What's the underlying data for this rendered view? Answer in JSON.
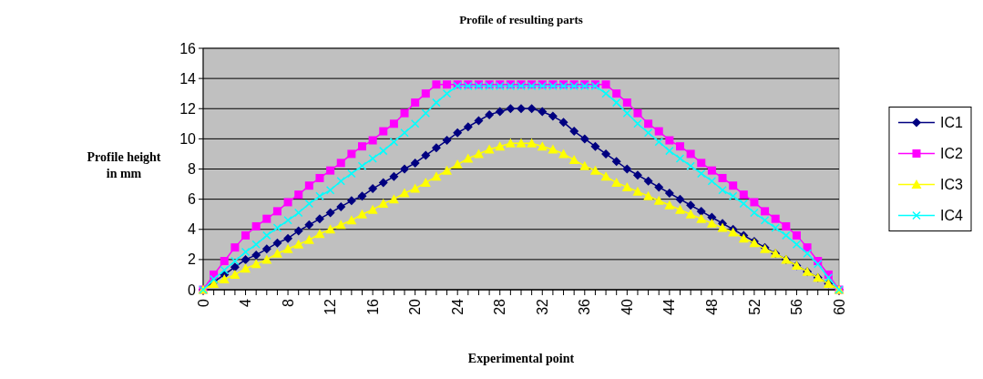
{
  "chart_data": {
    "type": "line",
    "title": "Profile of resulting parts",
    "xlabel": "Experimental point",
    "ylabel": "Profile height in mm",
    "x": [
      0,
      1,
      2,
      3,
      4,
      5,
      6,
      7,
      8,
      9,
      10,
      11,
      12,
      13,
      14,
      15,
      16,
      17,
      18,
      19,
      20,
      21,
      22,
      23,
      24,
      25,
      26,
      27,
      28,
      29,
      30,
      31,
      32,
      33,
      34,
      35,
      36,
      37,
      38,
      39,
      40,
      41,
      42,
      43,
      44,
      45,
      46,
      47,
      48,
      49,
      50,
      51,
      52,
      53,
      54,
      55,
      56,
      57,
      58,
      59,
      60
    ],
    "xlim": [
      0,
      60
    ],
    "xticks": [
      0,
      4,
      8,
      12,
      16,
      20,
      24,
      28,
      32,
      36,
      40,
      44,
      48,
      52,
      56,
      60
    ],
    "ylim": [
      0,
      16
    ],
    "yticks": [
      0,
      2,
      4,
      6,
      8,
      10,
      12,
      14,
      16
    ],
    "grid": "y",
    "legend": "right",
    "series": [
      {
        "name": "IC1",
        "color": "#000080",
        "marker": "diamond",
        "values": [
          0,
          0.5,
          1.0,
          1.5,
          2.0,
          2.3,
          2.7,
          3.1,
          3.4,
          3.9,
          4.3,
          4.7,
          5.1,
          5.5,
          5.9,
          6.2,
          6.7,
          7.1,
          7.5,
          8.0,
          8.4,
          8.9,
          9.4,
          9.9,
          10.4,
          10.8,
          11.2,
          11.6,
          11.8,
          12.0,
          12.0,
          12.0,
          11.8,
          11.5,
          11.1,
          10.5,
          10.0,
          9.5,
          9.0,
          8.5,
          8.0,
          7.6,
          7.2,
          6.8,
          6.4,
          6.0,
          5.6,
          5.2,
          4.8,
          4.4,
          4.0,
          3.6,
          3.2,
          2.8,
          2.4,
          2.0,
          1.6,
          1.2,
          0.8,
          0.4,
          0
        ]
      },
      {
        "name": "IC2",
        "color": "#ff00ff",
        "marker": "square",
        "values": [
          0,
          1.0,
          1.9,
          2.8,
          3.6,
          4.2,
          4.7,
          5.2,
          5.8,
          6.3,
          6.9,
          7.4,
          7.9,
          8.4,
          9.0,
          9.5,
          9.9,
          10.5,
          11.0,
          11.7,
          12.4,
          13.0,
          13.6,
          13.6,
          13.6,
          13.6,
          13.6,
          13.6,
          13.6,
          13.6,
          13.6,
          13.6,
          13.6,
          13.6,
          13.6,
          13.6,
          13.6,
          13.6,
          13.6,
          13.0,
          12.4,
          11.7,
          11.0,
          10.5,
          9.9,
          9.5,
          9.0,
          8.4,
          7.9,
          7.4,
          6.9,
          6.3,
          5.8,
          5.2,
          4.7,
          4.2,
          3.6,
          2.8,
          1.9,
          1.0,
          0
        ]
      },
      {
        "name": "IC3",
        "color": "#ffff00",
        "marker": "triangle",
        "values": [
          0,
          0.4,
          0.7,
          1.0,
          1.4,
          1.7,
          2.0,
          2.4,
          2.7,
          3.0,
          3.3,
          3.7,
          4.0,
          4.3,
          4.6,
          5.0,
          5.3,
          5.7,
          6.0,
          6.4,
          6.7,
          7.1,
          7.5,
          7.9,
          8.3,
          8.7,
          9.0,
          9.3,
          9.5,
          9.7,
          9.7,
          9.7,
          9.5,
          9.3,
          9.0,
          8.6,
          8.2,
          7.9,
          7.5,
          7.1,
          6.8,
          6.5,
          6.2,
          5.9,
          5.6,
          5.3,
          5.0,
          4.7,
          4.4,
          4.1,
          3.8,
          3.4,
          3.1,
          2.7,
          2.4,
          2.0,
          1.6,
          1.2,
          0.8,
          0.4,
          0
        ]
      },
      {
        "name": "IC4",
        "color": "#00ffff",
        "marker": "cross",
        "values": [
          0,
          0.7,
          1.3,
          1.9,
          2.5,
          3.0,
          3.6,
          4.1,
          4.6,
          5.1,
          5.7,
          6.2,
          6.6,
          7.2,
          7.7,
          8.2,
          8.7,
          9.2,
          9.8,
          10.4,
          11.0,
          11.7,
          12.4,
          13.0,
          13.5,
          13.5,
          13.5,
          13.5,
          13.5,
          13.5,
          13.5,
          13.5,
          13.5,
          13.5,
          13.5,
          13.5,
          13.5,
          13.5,
          13.0,
          12.4,
          11.7,
          11.0,
          10.4,
          9.8,
          9.2,
          8.7,
          8.2,
          7.7,
          7.2,
          6.6,
          6.2,
          5.7,
          5.1,
          4.6,
          4.1,
          3.6,
          3.0,
          2.4,
          1.7,
          0.8,
          0
        ]
      }
    ]
  }
}
